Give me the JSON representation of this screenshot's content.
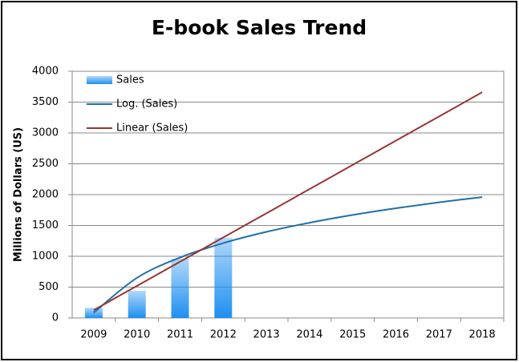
{
  "chart_data": {
    "type": "bar",
    "title": "E-book Sales Trend",
    "y_label": "Millions of Dollars (US)",
    "categories": [
      "2009",
      "2010",
      "2011",
      "2012",
      "2013",
      "2014",
      "2015",
      "2016",
      "2017",
      "2018"
    ],
    "series": [
      {
        "name": "Sales",
        "type": "bar",
        "color": "#1e8ff0",
        "values": [
          165,
          440,
          960,
          1300,
          null,
          null,
          null,
          null,
          null,
          null
        ]
      },
      {
        "name": "Log. (Sales)",
        "type": "line",
        "color": "#1f6fa8",
        "values": [
          86,
          650,
          980,
          1214,
          1396,
          1544,
          1670,
          1779,
          1875,
          1960
        ]
      },
      {
        "name": "Linear (Sales)",
        "type": "line",
        "color": "#953735",
        "values": [
          127,
          520,
          912,
          1305,
          1697,
          2090,
          2482,
          2875,
          3267,
          3660
        ]
      }
    ],
    "ylim": [
      0,
      4000
    ],
    "yticks": [
      0,
      500,
      1000,
      1500,
      2000,
      2500,
      3000,
      3500,
      4000
    ],
    "grid": true,
    "legend": "top-left"
  }
}
